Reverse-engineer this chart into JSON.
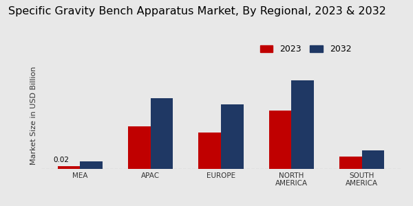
{
  "title": "Specific Gravity Bench Apparatus Market, By Regional, 2023 & 2032",
  "categories": [
    "MEA",
    "APAC",
    "EUROPE",
    "NORTH\nAMERICA",
    "SOUTH\nAMERICA"
  ],
  "values_2023": [
    0.02,
    0.28,
    0.24,
    0.38,
    0.08
  ],
  "values_2032": [
    0.05,
    0.46,
    0.42,
    0.58,
    0.12
  ],
  "color_2023": "#c00000",
  "color_2032": "#1f3864",
  "ylabel": "Market Size in USD Billion",
  "annotation_text": "0.02",
  "annotation_region": 0,
  "background_color": "#e8e8e8",
  "legend_labels": [
    "2023",
    "2032"
  ],
  "bar_width": 0.32,
  "ylim": [
    0,
    0.7
  ],
  "title_fontsize": 11.5,
  "ylabel_fontsize": 8,
  "tick_fontsize": 7.5,
  "legend_fontsize": 9,
  "bottom_stripe_color": "#c00000"
}
